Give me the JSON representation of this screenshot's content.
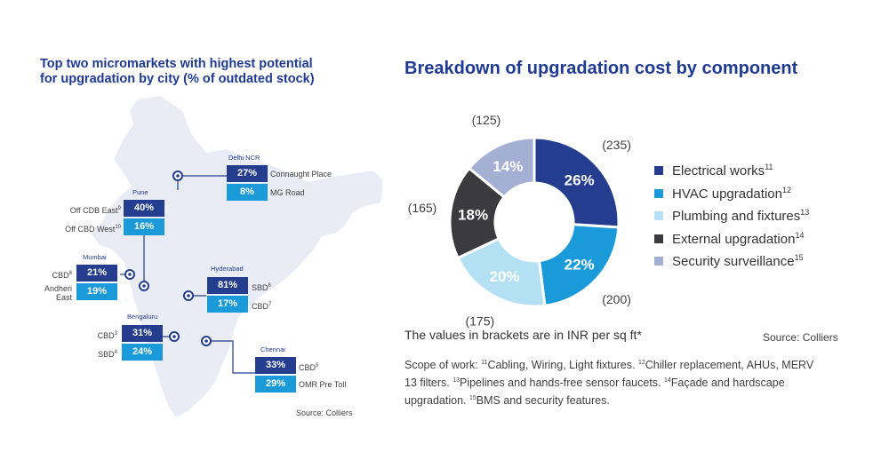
{
  "left_panel": {
    "title_line1": "Top two micromarkets with highest potential",
    "title_line2": "for upgradation by city (% of outdated stock)",
    "source": "Source: Colliers",
    "cities": [
      {
        "name": "Delhi NCR",
        "markets": [
          {
            "value": "27%",
            "label": "Connaught Place"
          },
          {
            "value": "8%",
            "label": "MG Road"
          }
        ]
      },
      {
        "name": "Pune",
        "markets": [
          {
            "value": "40%",
            "label": "Off CDB East",
            "sup": "9"
          },
          {
            "value": "16%",
            "label": "Off CBD West",
            "sup": "10"
          }
        ]
      },
      {
        "name": "Mumbai",
        "markets": [
          {
            "value": "21%",
            "label": "CBD",
            "sup": "8"
          },
          {
            "value": "19%",
            "label": "Andheri East"
          }
        ]
      },
      {
        "name": "Hyderabad",
        "markets": [
          {
            "value": "81%",
            "label": "SBD",
            "sup": "6"
          },
          {
            "value": "17%",
            "label": "CBD",
            "sup": "7"
          }
        ]
      },
      {
        "name": "Bengaluru",
        "markets": [
          {
            "value": "31%",
            "label": "CBD",
            "sup": "3"
          },
          {
            "value": "24%",
            "label": "SBD",
            "sup": "4"
          }
        ]
      },
      {
        "name": "Chennai",
        "markets": [
          {
            "value": "33%",
            "label": "CBD",
            "sup": "5"
          },
          {
            "value": "29%",
            "label": "OMR Pre Toll"
          }
        ]
      }
    ]
  },
  "chart_data": {
    "type": "pie",
    "title": "Breakdown of upgradation cost by component",
    "donut": true,
    "slices": [
      {
        "name": "Electrical works",
        "sup": "11",
        "percent": 26,
        "label": "26%",
        "value_inr": "(235)",
        "color": "#243d8f"
      },
      {
        "name": "HVAC upgradation",
        "sup": "12",
        "percent": 22,
        "label": "22%",
        "value_inr": "(200)",
        "color": "#1a9ad8"
      },
      {
        "name": "Plumbing and fixtures",
        "sup": "13",
        "percent": 20,
        "label": "20%",
        "value_inr": "(175)",
        "color": "#b3e0f2"
      },
      {
        "name": "External upgradation",
        "sup": "14",
        "percent": 18,
        "label": "18%",
        "value_inr": "(165)",
        "color": "#3b3b3f"
      },
      {
        "name": "Security surveillance",
        "sup": "15",
        "percent": 14,
        "label": "14%",
        "value_inr": "(125)",
        "color": "#a3afd3"
      }
    ],
    "note": "The values in brackets are in INR per sq ft*",
    "source": "Source: Colliers"
  },
  "scope": {
    "prefix": "Scope of work: ",
    "items": [
      {
        "sup": "11",
        "text": "Cabling, Wiring, Light fixtures. "
      },
      {
        "sup": "12",
        "text": "Chiller replacement, AHUs, MERV 13 filters. "
      },
      {
        "sup": "13",
        "text": "Pipelines and hands-free sensor faucets. "
      },
      {
        "sup": "14",
        "text": "Façade and hardscape upgradation. "
      },
      {
        "sup": "15",
        "text": "BMS and security features."
      }
    ]
  }
}
